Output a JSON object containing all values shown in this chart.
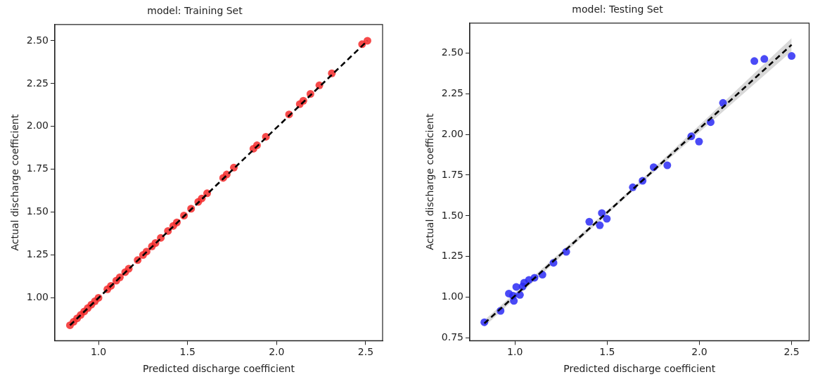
{
  "chart_data": [
    {
      "type": "scatter",
      "title": "model: Training Set",
      "xlabel": "Predicted discharge coefficient",
      "ylabel": "Actual discharge coefficient",
      "xlim": [
        0.755,
        2.595
      ],
      "ylim": [
        0.75,
        2.595
      ],
      "xticks": [
        {
          "value": 1,
          "label": "1.0"
        },
        {
          "value": 1.5,
          "label": "1.5"
        },
        {
          "value": 2,
          "label": "2.0"
        },
        {
          "value": 2.5,
          "label": "2.5"
        }
      ],
      "yticks": [
        {
          "value": 1,
          "label": "1.00"
        },
        {
          "value": 1.25,
          "label": "1.25"
        },
        {
          "value": 1.5,
          "label": "1.50"
        },
        {
          "value": 1.75,
          "label": "1.75"
        },
        {
          "value": 2,
          "label": "2.00"
        },
        {
          "value": 2.25,
          "label": "2.25"
        },
        {
          "value": 2.5,
          "label": "2.50"
        }
      ],
      "grid": false,
      "legend": false,
      "marker": "circle",
      "series": [
        {
          "type": "scatter",
          "color": "#f52a2a",
          "x": [
            0.84,
            0.86,
            0.88,
            0.9,
            0.92,
            0.94,
            0.96,
            0.98,
            1.0,
            1.05,
            1.07,
            1.1,
            1.12,
            1.15,
            1.17,
            1.22,
            1.25,
            1.27,
            1.3,
            1.32,
            1.35,
            1.39,
            1.42,
            1.44,
            1.48,
            1.52,
            1.56,
            1.58,
            1.61,
            1.7,
            1.72,
            1.76,
            1.87,
            1.89,
            1.94,
            2.07,
            2.13,
            2.15,
            2.19,
            2.24,
            2.31,
            2.48,
            2.51
          ],
          "values": [
            0.84,
            0.86,
            0.88,
            0.9,
            0.92,
            0.94,
            0.96,
            0.98,
            1.0,
            1.05,
            1.07,
            1.1,
            1.12,
            1.15,
            1.17,
            1.22,
            1.25,
            1.27,
            1.3,
            1.32,
            1.35,
            1.39,
            1.42,
            1.44,
            1.48,
            1.52,
            1.56,
            1.58,
            1.61,
            1.7,
            1.72,
            1.76,
            1.87,
            1.89,
            1.94,
            2.07,
            2.13,
            2.15,
            2.19,
            2.24,
            2.31,
            2.48,
            2.5
          ]
        },
        {
          "type": "line",
          "color": "#000000",
          "line_style": "dashed",
          "marker": "none",
          "x": [
            0.84,
            2.51
          ],
          "values": [
            0.84,
            2.5
          ]
        }
      ]
    },
    {
      "type": "scatter",
      "title": "model: Testing Set",
      "xlabel": "Predicted discharge coefficient",
      "ylabel": "Actual discharge coefficient",
      "xlim": [
        0.755,
        2.595
      ],
      "ylim": [
        0.734,
        2.683
      ],
      "xticks": [
        {
          "value": 1,
          "label": "1.0"
        },
        {
          "value": 1.5,
          "label": "1.5"
        },
        {
          "value": 2,
          "label": "2.0"
        },
        {
          "value": 2.5,
          "label": "2.5"
        }
      ],
      "yticks": [
        {
          "value": 0.75,
          "label": "0.75"
        },
        {
          "value": 1,
          "label": "1.00"
        },
        {
          "value": 1.25,
          "label": "1.25"
        },
        {
          "value": 1.5,
          "label": "1.50"
        },
        {
          "value": 1.75,
          "label": "1.75"
        },
        {
          "value": 2,
          "label": "2.00"
        },
        {
          "value": 2.25,
          "label": "2.25"
        },
        {
          "value": 2.5,
          "label": "2.50"
        }
      ],
      "grid": false,
      "legend": false,
      "marker": "circle",
      "series": [
        {
          "type": "line",
          "color": "#000000",
          "line_style": "dashed",
          "marker": "none",
          "x": [
            0.834,
            1.67,
            2.5
          ],
          "values": [
            0.84,
            1.695,
            2.55
          ],
          "lower": [
            0.82,
            1.685,
            2.51
          ],
          "upper": [
            0.86,
            1.705,
            2.59
          ]
        },
        {
          "type": "scatter",
          "color": "#2a2af5",
          "x": [
            0.834,
            0.922,
            0.967,
            0.994,
            0.99,
            1.007,
            1.027,
            1.042,
            1.05,
            1.076,
            1.106,
            1.149,
            1.209,
            1.278,
            1.403,
            1.46,
            1.471,
            1.498,
            1.639,
            1.692,
            1.752,
            1.826,
            1.956,
            1.998,
            2.061,
            2.128,
            2.298,
            2.352,
            2.5
          ],
          "values": [
            0.847,
            0.917,
            1.023,
            0.978,
            1.01,
            1.064,
            1.015,
            1.067,
            1.09,
            1.107,
            1.12,
            1.139,
            1.212,
            1.279,
            1.464,
            1.442,
            1.517,
            1.482,
            1.675,
            1.715,
            1.799,
            1.81,
            1.988,
            1.956,
            2.075,
            2.193,
            2.45,
            2.463,
            2.481
          ]
        }
      ]
    }
  ]
}
